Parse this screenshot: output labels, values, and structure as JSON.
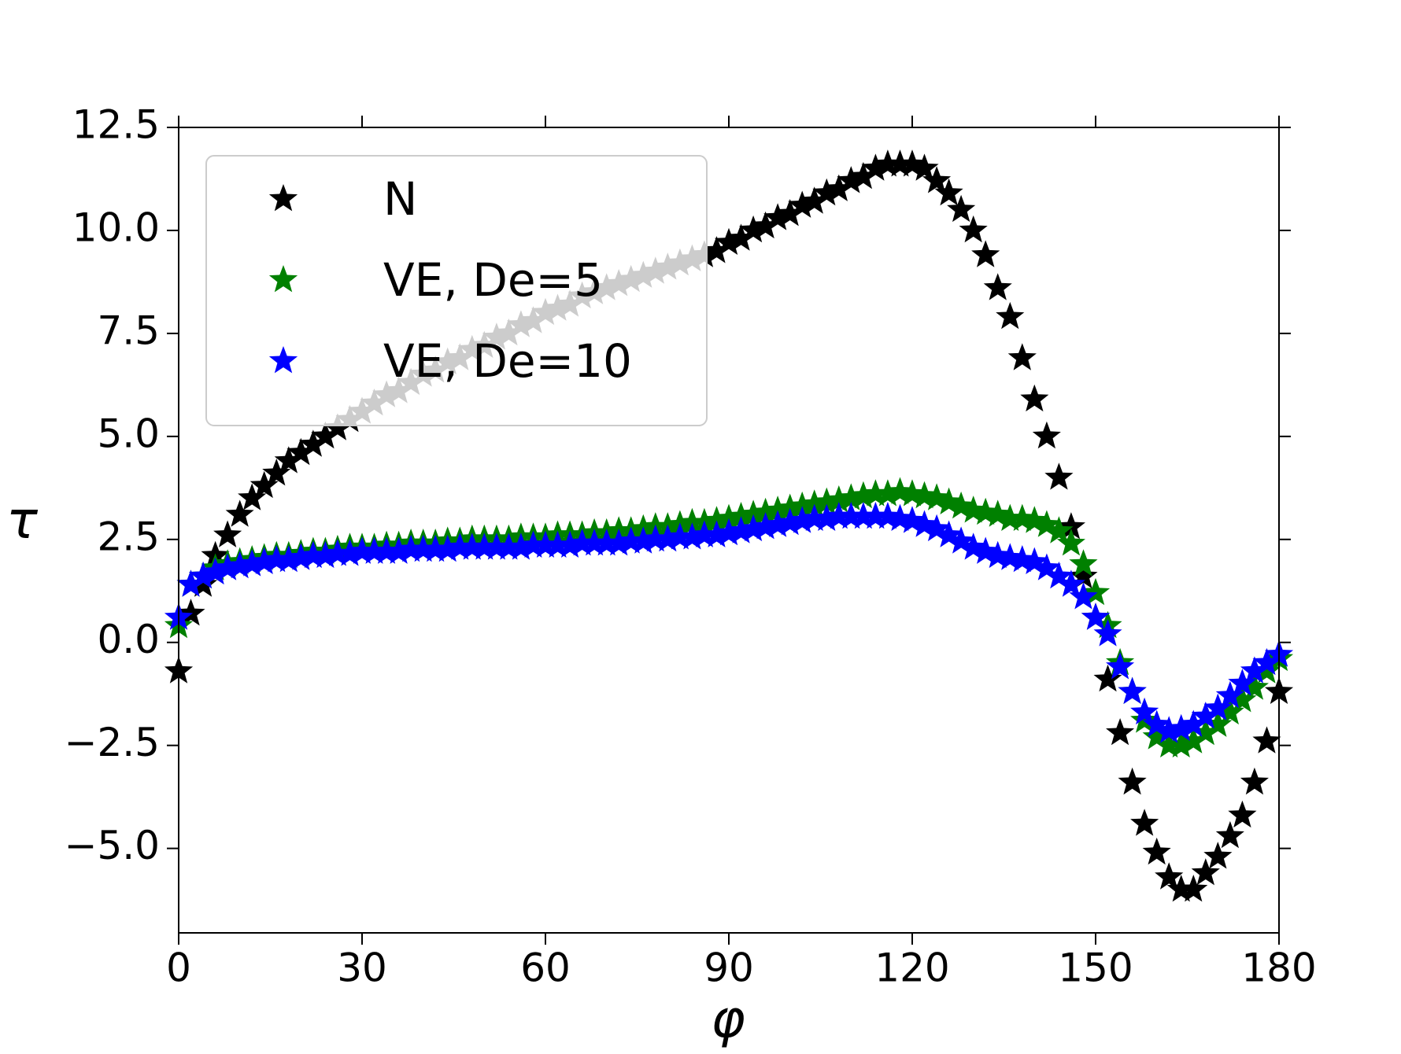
{
  "chart_data": {
    "type": "scatter",
    "x_label": "φ",
    "y_label": "τ",
    "legend": "upper left",
    "marker": "star",
    "x": [
      0,
      2,
      4,
      6,
      8,
      10,
      12,
      14,
      16,
      18,
      20,
      22,
      24,
      26,
      28,
      30,
      32,
      34,
      36,
      38,
      40,
      42,
      44,
      46,
      48,
      50,
      52,
      54,
      56,
      58,
      60,
      62,
      64,
      66,
      68,
      70,
      72,
      74,
      76,
      78,
      80,
      82,
      84,
      86,
      88,
      90,
      92,
      94,
      96,
      98,
      100,
      102,
      104,
      106,
      108,
      110,
      112,
      114,
      116,
      118,
      120,
      122,
      124,
      126,
      128,
      130,
      132,
      134,
      136,
      138,
      140,
      142,
      144,
      146,
      148,
      150,
      152,
      154,
      156,
      158,
      160,
      162,
      164,
      166,
      168,
      170,
      172,
      174,
      176,
      178,
      180
    ],
    "series": [
      {
        "name": "N",
        "color": "#000000",
        "values": [
          -0.7,
          0.7,
          1.4,
          2.1,
          2.6,
          3.1,
          3.5,
          3.8,
          4.1,
          4.4,
          4.6,
          4.8,
          5.0,
          5.2,
          5.4,
          5.6,
          5.8,
          6.0,
          6.1,
          6.3,
          6.5,
          6.6,
          6.8,
          6.9,
          7.1,
          7.2,
          7.4,
          7.5,
          7.7,
          7.8,
          8.0,
          8.1,
          8.2,
          8.4,
          8.5,
          8.6,
          8.7,
          8.8,
          8.9,
          9.0,
          9.1,
          9.2,
          9.3,
          9.4,
          9.5,
          9.7,
          9.8,
          10.0,
          10.1,
          10.3,
          10.4,
          10.6,
          10.7,
          10.9,
          11.0,
          11.2,
          11.3,
          11.5,
          11.6,
          11.6,
          11.6,
          11.5,
          11.2,
          10.9,
          10.5,
          10.0,
          9.4,
          8.6,
          7.9,
          6.9,
          5.9,
          5.0,
          4.0,
          2.8,
          1.6,
          0.6,
          -0.9,
          -2.2,
          -3.4,
          -4.4,
          -5.1,
          -5.7,
          -6.0,
          -6.0,
          -5.6,
          -5.2,
          -4.7,
          -4.2,
          -3.4,
          -2.4,
          -1.2
        ]
      },
      {
        "name": "VE, De=5",
        "color": "#008000",
        "values": [
          0.4,
          1.4,
          1.6,
          1.8,
          1.9,
          1.95,
          2.0,
          2.05,
          2.1,
          2.1,
          2.15,
          2.2,
          2.2,
          2.25,
          2.3,
          2.3,
          2.3,
          2.35,
          2.35,
          2.4,
          2.4,
          2.4,
          2.45,
          2.45,
          2.5,
          2.5,
          2.5,
          2.5,
          2.55,
          2.55,
          2.55,
          2.6,
          2.6,
          2.6,
          2.65,
          2.65,
          2.7,
          2.7,
          2.75,
          2.8,
          2.8,
          2.85,
          2.9,
          2.9,
          2.95,
          3.0,
          3.05,
          3.1,
          3.15,
          3.2,
          3.25,
          3.3,
          3.35,
          3.4,
          3.45,
          3.5,
          3.55,
          3.6,
          3.6,
          3.65,
          3.6,
          3.55,
          3.5,
          3.4,
          3.3,
          3.2,
          3.15,
          3.1,
          3.0,
          3.0,
          2.95,
          2.85,
          2.7,
          2.4,
          1.9,
          1.2,
          0.4,
          -0.5,
          -1.2,
          -1.9,
          -2.3,
          -2.5,
          -2.5,
          -2.4,
          -2.2,
          -2.0,
          -1.7,
          -1.4,
          -1.1,
          -0.7,
          -0.4
        ]
      },
      {
        "name": "VE, De=10",
        "color": "#0000ff",
        "values": [
          0.6,
          1.4,
          1.6,
          1.7,
          1.8,
          1.85,
          1.9,
          1.95,
          2.0,
          2.0,
          2.05,
          2.1,
          2.1,
          2.15,
          2.15,
          2.2,
          2.2,
          2.2,
          2.2,
          2.25,
          2.25,
          2.25,
          2.25,
          2.3,
          2.3,
          2.3,
          2.3,
          2.3,
          2.3,
          2.35,
          2.35,
          2.35,
          2.35,
          2.4,
          2.4,
          2.4,
          2.4,
          2.45,
          2.45,
          2.5,
          2.5,
          2.55,
          2.55,
          2.6,
          2.6,
          2.65,
          2.7,
          2.75,
          2.8,
          2.85,
          2.9,
          2.95,
          3.0,
          3.0,
          3.05,
          3.05,
          3.05,
          3.05,
          3.05,
          3.0,
          2.95,
          2.85,
          2.75,
          2.6,
          2.45,
          2.3,
          2.2,
          2.1,
          2.05,
          2.0,
          1.95,
          1.8,
          1.6,
          1.4,
          1.1,
          0.6,
          0.2,
          -0.6,
          -1.2,
          -1.7,
          -2.0,
          -2.15,
          -2.1,
          -2.0,
          -1.8,
          -1.6,
          -1.3,
          -1.0,
          -0.7,
          -0.5,
          -0.3
        ]
      }
    ],
    "xlim": [
      0,
      180
    ],
    "xticks": [
      0,
      30,
      60,
      90,
      120,
      150,
      180
    ],
    "ylim": [
      -7.05,
      12.5
    ],
    "yticks": [
      {
        "value": -5,
        "label": "−5.0"
      },
      {
        "value": -2.5,
        "label": "−2.5"
      },
      {
        "value": 0,
        "label": "0.0"
      },
      {
        "value": 2.5,
        "label": "2.5"
      },
      {
        "value": 5,
        "label": "5.0"
      },
      {
        "value": 7.5,
        "label": "7.5"
      },
      {
        "value": 10,
        "label": "10.0"
      },
      {
        "value": 12.5,
        "label": "12.5"
      }
    ]
  }
}
